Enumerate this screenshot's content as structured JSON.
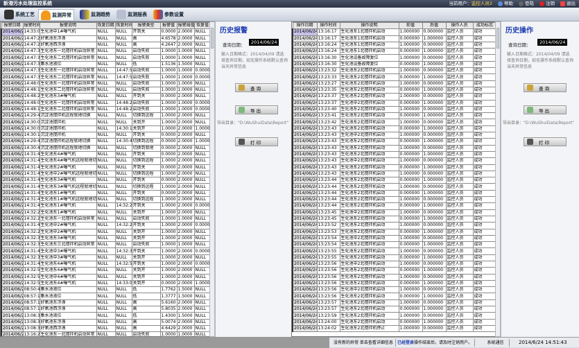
{
  "app": {
    "title": "新港污水处理监控系统"
  },
  "toolbar": {
    "items": [
      {
        "label": "系统工艺",
        "icon": "gears-icon"
      },
      {
        "label": "监测异常",
        "icon": "bell-icon",
        "active": true
      },
      {
        "label": "监测趋势",
        "icon": "trend-chart-icon"
      },
      {
        "label": "监测报表",
        "icon": "report-icon"
      },
      {
        "label": "参数设置",
        "icon": "settings-icon"
      }
    ]
  },
  "user_bar": {
    "label": "当前用户：",
    "user": "监控人员2",
    "help": "帮助",
    "login": "登陆",
    "logout": "注销",
    "exit": "退出"
  },
  "alarm_table": {
    "headers": [
      "报警日期",
      "报警时间",
      "报警说明",
      "恢复日期",
      "恢复时间",
      "报警类型",
      "报警值",
      "报警阈值",
      "恢复值"
    ],
    "date": "2014/06/24",
    "rows": [
      [
        "14:33:07",
        "生化池中1#曝气机",
        "NULL",
        "NULL",
        "开到关",
        "0.0000",
        "2.0000",
        "NULL"
      ],
      [
        "14:47:23",
        "好氧池东浮漂",
        "NULL",
        "NULL",
        "高",
        "4.6578",
        "2.0000",
        "NULL"
      ],
      [
        "14:47:23",
        "好氧池西浮漂",
        "NULL",
        "NULL",
        "高",
        "4.2647",
        "2.0000",
        "NULL"
      ],
      [
        "14:47:38",
        "生化池东一北搅拌机启动异常",
        "NULL",
        "NULL",
        "启动失败",
        "1.0000",
        "1.0000",
        "NULL"
      ],
      [
        "14:47:38",
        "生化池东二北搅拌机启动异常",
        "NULL",
        "NULL",
        "启动失败",
        "1.0000",
        "1.0000",
        "NULL"
      ],
      [
        "14:47:31",
        "集水池液位",
        "NULL",
        "NULL",
        "低",
        "1.5136",
        "1.5000",
        "NULL"
      ],
      [
        "14:47:38",
        "生化池东一北搅拌机启动异常",
        "NULL",
        "14:47:55",
        "启动失败",
        "1.0000",
        "1.0000",
        "0.0000"
      ],
      [
        "14:47:38",
        "生化池东二北搅拌机启动异常",
        "NULL",
        "14:47:55",
        "启动失败",
        "1.0000",
        "1.0000",
        "0.0000"
      ],
      [
        "14:48:04",
        "生化池东一北搅拌机启动异常",
        "NULL",
        "NULL",
        "启动失败",
        "1.0000",
        "1.0000",
        "NULL"
      ],
      [
        "14:48:15",
        "生化池东二北搅拌机启动异常",
        "NULL",
        "NULL",
        "启动失败",
        "1.0000",
        "1.0000",
        "NULL"
      ],
      [
        "14:48:25",
        "生化池东3#曝气机",
        "NULL",
        "NULL",
        "开到关",
        "0.0000",
        "2.0000",
        "NULL"
      ],
      [
        "14:48:04",
        "生化池东一北搅拌机启动异常",
        "NULL",
        "14:48:29",
        "启动失败",
        "1.0000",
        "1.0000",
        "0.0000"
      ],
      [
        "14:48:15",
        "生化池东二北搅拌机启动异常",
        "NULL",
        "14:48:29",
        "启动失败",
        "1.0000",
        "1.0000",
        "0.0000"
      ],
      [
        "14:29:41",
        "沉淀池搅拌机远程就地切换",
        "NULL",
        "NULL",
        "切换到远程",
        "1.0000",
        "2.0000",
        "NULL"
      ],
      [
        "14:30:08",
        "沉淀池搅拌机",
        "NULL",
        "NULL",
        "关到开",
        "1.0000",
        "2.0000",
        "NULL"
      ],
      [
        "14:30:08",
        "沉淀池搅拌机",
        "NULL",
        "14:30:15",
        "关到开",
        "1.0000",
        "2.0000",
        "1.0000"
      ],
      [
        "14:30:15",
        "沉淀池搅拌机",
        "NULL",
        "NULL",
        "开到关",
        "0.0000",
        "2.0000",
        "NULL"
      ],
      [
        "14:29:41",
        "沉淀池搅拌机远程就地切换",
        "NULL",
        "14:30:48",
        "切换到远程",
        "0.0000",
        "2.0000",
        "1.0000"
      ],
      [
        "14:30:48",
        "沉淀池搅拌机远程就地切换",
        "NULL",
        "NULL",
        "切换到就地",
        "0.0000",
        "2.0000",
        "NULL"
      ],
      [
        "14:31:43",
        "生化池东4#曝气机",
        "NULL",
        "NULL",
        "开到关",
        "0.0000",
        "2.0000",
        "NULL"
      ],
      [
        "14:31:43",
        "生化池东4#曝气机远程就地切换",
        "NULL",
        "NULL",
        "切换到远程",
        "1.0000",
        "2.0000",
        "NULL"
      ],
      [
        "14:31:45",
        "生化池东2#曝气机",
        "NULL",
        "NULL",
        "开到关",
        "0.0000",
        "2.0000",
        "NULL"
      ],
      [
        "14:31:45",
        "生化池中2#曝气机远程就地切换",
        "NULL",
        "NULL",
        "切换到远程",
        "1.0000",
        "2.0000",
        "NULL"
      ],
      [
        "14:31:45",
        "生化池东3#曝气机",
        "NULL",
        "NULL",
        "开到关",
        "0.0000",
        "2.0000",
        "NULL"
      ],
      [
        "14:31:45",
        "生化池东3#曝气机远程就地切换",
        "NULL",
        "NULL",
        "切换到远程",
        "1.0000",
        "2.0000",
        "NULL"
      ],
      [
        "14:31:47",
        "生化池东1#曝气机",
        "NULL",
        "NULL",
        "开到关",
        "0.0000",
        "2.0000",
        "NULL"
      ],
      [
        "14:31:47",
        "生化池东1#曝气机远程就地切换",
        "NULL",
        "NULL",
        "切换到远程",
        "1.0000",
        "2.0000",
        "NULL"
      ],
      [
        "14:31:47",
        "生化池东1#曝气机",
        "NULL",
        "14:32:21",
        "开到关",
        "1.0000",
        "2.0000",
        "0.0000"
      ],
      [
        "14:32:21",
        "生化池东1#曝气机",
        "NULL",
        "NULL",
        "关到开",
        "1.0000",
        "2.0000",
        "NULL"
      ],
      [
        "14:32:27",
        "生化池东一北搅拌机启动异常",
        "NULL",
        "NULL",
        "启动失败",
        "1.0000",
        "1.0000",
        "NULL"
      ],
      [
        "14:31:45",
        "生化池中2#曝气机",
        "NULL",
        "14:32:28",
        "开到关",
        "1.0000",
        "2.0000",
        "0.0000"
      ],
      [
        "14:32:28",
        "生化池中2#曝气机",
        "NULL",
        "NULL",
        "关到开",
        "1.0000",
        "2.0000",
        "NULL"
      ],
      [
        "14:32:33",
        "生化池东3#曝气机",
        "NULL",
        "NULL",
        "关到开",
        "1.0000",
        "2.0000",
        "NULL"
      ],
      [
        "14:32:34",
        "生化池东三北搅拌机启动异常",
        "NULL",
        "NULL",
        "启动失败",
        "1.0000",
        "1.0000",
        "NULL"
      ],
      [
        "14:31:45",
        "生化池中3#曝气机",
        "NULL",
        "14:32:35",
        "开到关",
        "1.0000",
        "2.0000",
        "0.0000"
      ],
      [
        "14:32:35",
        "生化池中3#曝气机",
        "NULL",
        "NULL",
        "关到开",
        "1.0000",
        "2.0000",
        "NULL"
      ],
      [
        "14:31:43",
        "生化池东4#曝气机",
        "NULL",
        "14:32:55",
        "开到关",
        "1.0000",
        "2.0000",
        "0.0000"
      ],
      [
        "14:32:55",
        "生化池东4#曝气机",
        "NULL",
        "NULL",
        "关到开",
        "1.0000",
        "2.0000",
        "NULL"
      ],
      [
        "14:32:58",
        "生化池中4#曝气机",
        "NULL",
        "NULL",
        "关到开",
        "1.0000",
        "2.0000",
        "NULL"
      ],
      [
        "14:32:55",
        "生化池东4#曝气机",
        "NULL",
        "14:33:07",
        "关到开",
        "0.0000",
        "2.0000",
        "1.0000"
      ],
      [
        "08:50:48",
        "集水池液位",
        "NULL",
        "NULL",
        "低",
        "1.7762",
        "1.5000",
        "NULL"
      ],
      [
        "08:57:15",
        "集水池液位",
        "NULL",
        "NULL",
        "低",
        "1.3777",
        "1.5000",
        "NULL"
      ],
      [
        "08:57:15",
        "好氧池东浮漂",
        "NULL",
        "NULL",
        "高",
        "5.6160",
        "2.0000",
        "NULL"
      ],
      [
        "08:57:15",
        "好氧池西浮漂",
        "NULL",
        "NULL",
        "高",
        "5.8035",
        "2.0000",
        "NULL"
      ],
      [
        "13:08:34",
        "集水池液位",
        "NULL",
        "NULL",
        "低",
        "1.4300",
        "1.5000",
        "NULL"
      ],
      [
        "13:08:34",
        "好氧池东浮漂",
        "NULL",
        "NULL",
        "高",
        "5.0074",
        "2.0000",
        "NULL"
      ],
      [
        "13:08:34",
        "好氧池西浮漂",
        "NULL",
        "NULL",
        "高",
        "4.6429",
        "2.0000",
        "NULL"
      ],
      [
        "13:16:24",
        "生化池东一北搅拌机启动异常",
        "NULL",
        "NULL",
        "启动失败",
        "1.0000",
        "1.0000",
        "NULL"
      ]
    ]
  },
  "alarm_panel": {
    "title": "历史报警",
    "date_label": "查询日期：",
    "date_value": "2014/06/24",
    "hint": "输入日期格式：2014/04/09 请选择查询日期，如无操作系统默认查询当天异常信息",
    "query": "查 询",
    "export": "导 出",
    "export_dir": "导出目录：\"D:\\WuShuiData\\Report\"",
    "print": "打 印"
  },
  "op_table": {
    "headers": [
      "操作日期",
      "操作时间",
      "操作说明",
      "前值",
      "后值",
      "操作人员",
      "成功标志"
    ],
    "date": "2014/06/24",
    "operator": "监控人员",
    "result": "成功",
    "rows": [
      [
        "13:16:17",
        "生化池东1北搅拌机启动",
        "1.000000",
        "0.000000"
      ],
      [
        "13:16:17",
        "生化池东1北搅拌机启动",
        "0.000000",
        "1.000000"
      ],
      [
        "13:16:24",
        "生化池东1北搅拌机启动",
        "1.000000",
        "0.000000"
      ],
      [
        "13:16:24",
        "生化池东1北搅拌机启动",
        "0.000000",
        "1.000000"
      ],
      [
        "13:16:30",
        "生化池设备故障复位",
        "1.000000",
        "0.000000"
      ],
      [
        "13:16:30",
        "生化池设备故障复位",
        "0.000000",
        "1.000000"
      ],
      [
        "13:23:32",
        "生化池东2北搅拌机启动",
        "1.000000",
        "0.000000"
      ],
      [
        "13:23:33",
        "生化池东2北搅拌机启动",
        "0.000000",
        "1.000000"
      ],
      [
        "13:23:27",
        "生化池东2北搅拌机启动",
        "1.000000",
        "0.000000"
      ],
      [
        "13:23:35",
        "生化池东2北搅拌机启动",
        "0.000000",
        "1.000000"
      ],
      [
        "13:23:37",
        "生化池东2北搅拌机启动",
        "1.000000",
        "0.000000"
      ],
      [
        "13:23:37",
        "生化池中2北搅拌机启动",
        "0.000000",
        "1.000000"
      ],
      [
        "13:23:40",
        "生化池东2北搅拌机启动",
        "1.000000",
        "0.000000"
      ],
      [
        "13:23:41",
        "生化池东2北搅拌机启动",
        "0.000000",
        "1.000000"
      ],
      [
        "13:23:42",
        "生化池东2北搅拌机启动",
        "1.000000",
        "0.000000"
      ],
      [
        "13:23:43",
        "生化池东2北搅拌机启动",
        "0.000000",
        "1.000000"
      ],
      [
        "13:23:43",
        "生化池中2北搅拌机启动",
        "1.000000",
        "0.000000"
      ],
      [
        "13:23:43",
        "生化池东2北搅拌机启动",
        "0.000000",
        "1.000000"
      ],
      [
        "13:23:43",
        "生化池东2北搅拌机启动",
        "1.000000",
        "0.000000"
      ],
      [
        "13:23:43",
        "生化池东2北搅拌机启动",
        "0.000000",
        "1.000000"
      ],
      [
        "13:23:43",
        "生化池中2北搅拌机启动",
        "1.000000",
        "0.000000"
      ],
      [
        "13:23:43",
        "生化池东2北搅拌机启动",
        "0.000000",
        "1.000000"
      ],
      [
        "13:23:43",
        "生化池东2北搅拌机启动",
        "1.000000",
        "0.000000"
      ],
      [
        "13:23:44",
        "生化池东2北搅拌机启动",
        "0.000000",
        "1.000000"
      ],
      [
        "13:23:44",
        "生化池东2北搅拌机启动",
        "1.000000",
        "0.000000"
      ],
      [
        "13:23:44",
        "生化池东2北搅拌机启动",
        "0.000000",
        "1.000000"
      ],
      [
        "13:23:44",
        "生化池东2北搅拌机启动",
        "1.000000",
        "0.000000"
      ],
      [
        "13:23:44",
        "生化池东2北搅拌机启动",
        "0.000000",
        "1.000000"
      ],
      [
        "13:23:45",
        "生化池中2北搅拌机启动",
        "1.000000",
        "0.000000"
      ],
      [
        "13:23:45",
        "生化池东2北搅拌机启动",
        "0.000000",
        "1.000000"
      ],
      [
        "13:23:52",
        "生化池东2北搅拌机启动",
        "1.000000",
        "0.000000"
      ],
      [
        "13:23:53",
        "生化池东2北搅拌机启动",
        "0.000000",
        "1.000000"
      ],
      [
        "13:23:54",
        "生化池中2北搅拌机启动",
        "1.000000",
        "0.000000"
      ],
      [
        "13:23:54",
        "生化池东2北搅拌机启动",
        "0.000000",
        "1.000000"
      ],
      [
        "13:23:55",
        "生化池东2北搅拌机启动",
        "1.000000",
        "0.000000"
      ],
      [
        "13:23:55",
        "生化池东2北搅拌机启动",
        "0.000000",
        "1.000000"
      ],
      [
        "13:23:56",
        "生化池中2北搅拌机启动",
        "1.000000",
        "0.000000"
      ],
      [
        "13:23:56",
        "生化池东2北搅拌机启动",
        "0.000000",
        "1.000000"
      ],
      [
        "13:23:56",
        "生化池东2北搅拌机启动",
        "1.000000",
        "0.000000"
      ],
      [
        "13:23:56",
        "生化池东2北搅拌机启动",
        "0.000000",
        "1.000000"
      ],
      [
        "13:23:56",
        "生化池中2北搅拌机启动",
        "1.000000",
        "0.000000"
      ],
      [
        "13:23:56",
        "生化池东2北搅拌机启动",
        "0.000000",
        "1.000000"
      ],
      [
        "13:23:57",
        "生化池东2北搅拌机启动",
        "1.000000",
        "0.000000"
      ],
      [
        "13:23:57",
        "生化池东2北搅拌机启动",
        "0.000000",
        "1.000000"
      ],
      [
        "13:23:59",
        "生化池东2北搅拌机启动",
        "1.000000",
        "0.000000"
      ],
      [
        "13:24:00",
        "生化池东2北搅拌机启动",
        "0.000000",
        "1.000000"
      ],
      [
        "13:24:02",
        "生化池东2北搅拌机停止",
        "1.000000",
        "0.000000"
      ]
    ]
  },
  "op_panel": {
    "title": "历史操作",
    "date_label": "查询日期：",
    "date_value": "2014/06/24",
    "hint": "输入日期格式：2014/04/09 请选择查询日期，如无操作系统默认查询当天异常信息",
    "query": "查 询",
    "export": "导 出",
    "export_dir": "导出目录：\"D:\\WuShuiData\\Report\"",
    "print": "打 印"
  },
  "status": {
    "alarm": "没有新的异常 单击查看详细信息",
    "login_state": "已经登录",
    "login_note": "操作结束后，请及时注销用户。",
    "comm": "系统通信",
    "datetime": "2014/6/24 14:51:43"
  },
  "colors": {
    "title_bar": "#2c3446",
    "panel_title": "#1a3bb0",
    "login_state": "#1a3bb0"
  }
}
